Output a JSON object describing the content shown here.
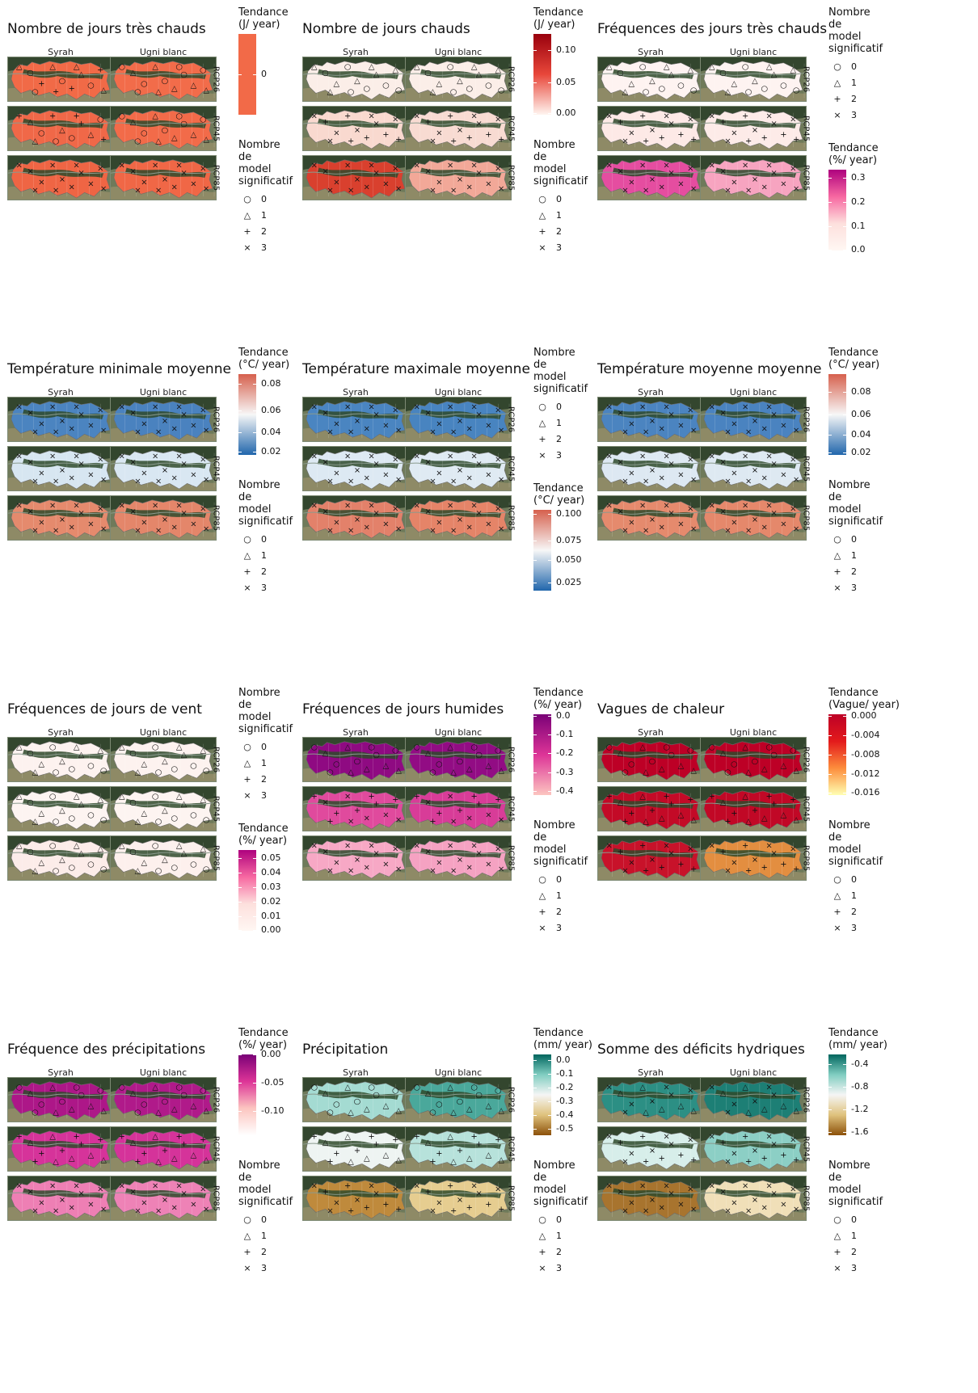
{
  "column_labels": [
    "Syrah",
    "Ugni blanc"
  ],
  "row_labels": [
    "RCP26",
    "RCP45",
    "RCP85"
  ],
  "shape_legend": {
    "title": "Nombre\nde\nmodel\nsignificatif",
    "items": [
      {
        "symbol": "○",
        "value": "0"
      },
      {
        "symbol": "△",
        "value": "1"
      },
      {
        "symbol": "+",
        "value": "2"
      },
      {
        "symbol": "×",
        "value": "3"
      }
    ]
  },
  "panels": [
    {
      "title": "Nombre de jours très chauds",
      "legend_order": "color-first",
      "color": {
        "title": "Tendance\n(J/ year)",
        "gradient": [
          "#f26a48",
          "#f26a48"
        ],
        "ticks": [
          {
            "label": "0",
            "pos": 0.5
          }
        ]
      },
      "fills": [
        [
          "#f16a47",
          "#f26c4a"
        ],
        [
          "#f06848",
          "#f26b49"
        ],
        [
          "#ef6544",
          "#f06746"
        ]
      ],
      "shapes": [
        [
          "△○+",
          "○△"
        ],
        [
          "+△○",
          "○△"
        ],
        [
          "××",
          "××"
        ]
      ]
    },
    {
      "title": "Nombre de jours chauds",
      "legend_order": "color-first",
      "color": {
        "title": "Tendance\n(J/ year)",
        "gradient": [
          "#99000d",
          "#e8473a",
          "#fff5f0"
        ],
        "ticks": [
          {
            "label": "0.10",
            "pos": 0.2
          },
          {
            "label": "0.05",
            "pos": 0.6
          },
          {
            "label": "0.00",
            "pos": 0.98
          }
        ]
      },
      "fills": [
        [
          "#fbeee8",
          "#fbeee8"
        ],
        [
          "#f9d9cf",
          "#f8dbd2"
        ],
        [
          "#d9402e",
          "#f2a898"
        ]
      ],
      "shapes": [
        [
          "△○",
          "△○"
        ],
        [
          "×+",
          "×+"
        ],
        [
          "××",
          "××"
        ]
      ]
    },
    {
      "title": "Fréquences des jours très chauds",
      "legend_order": "shape-first",
      "color": {
        "title": "Tendance\n(%/ year)",
        "gradient": [
          "#ae017e",
          "#f768a1",
          "#fde0dd",
          "#fff7f3"
        ],
        "ticks": [
          {
            "label": "0.3",
            "pos": 0.1
          },
          {
            "label": "0.2",
            "pos": 0.4
          },
          {
            "label": "0.1",
            "pos": 0.7
          },
          {
            "label": "0.0",
            "pos": 0.99
          }
        ]
      },
      "fills": [
        [
          "#fef3f1",
          "#fef3f1"
        ],
        [
          "#fde9e6",
          "#fdebe8"
        ],
        [
          "#e54da0",
          "#f7a4c0"
        ]
      ],
      "shapes": [
        [
          "△○",
          "△○"
        ],
        [
          "×+",
          "×+"
        ],
        [
          "××",
          "××"
        ]
      ]
    },
    {
      "title": "Température minimale moyenne",
      "legend_order": "color-first",
      "color": {
        "title": "Tendance\n(°C/ year)",
        "gradient": [
          "#d6604d",
          "#f7f7f7",
          "#2166ac"
        ],
        "ticks": [
          {
            "label": "0.08",
            "pos": 0.12
          },
          {
            "label": "0.06",
            "pos": 0.45
          },
          {
            "label": "0.04",
            "pos": 0.72
          },
          {
            "label": "0.02",
            "pos": 0.96
          }
        ]
      },
      "fills": [
        [
          "#4b84c0",
          "#4a82bf"
        ],
        [
          "#d7e6f1",
          "#d9e7f2"
        ],
        [
          "#e58a6d",
          "#e4866a"
        ]
      ],
      "shapes": [
        [
          "××",
          "××"
        ],
        [
          "××",
          "××"
        ],
        [
          "××",
          "××"
        ]
      ]
    },
    {
      "title": "Température maximale moyenne",
      "legend_order": "shape-first",
      "color": {
        "title": "Tendance\n(°C/ year)",
        "gradient": [
          "#d6604d",
          "#f7f7f7",
          "#2166ac"
        ],
        "ticks": [
          {
            "label": "0.100",
            "pos": 0.05
          },
          {
            "label": "0.075",
            "pos": 0.38
          },
          {
            "label": "0.050",
            "pos": 0.62
          },
          {
            "label": "0.025",
            "pos": 0.9
          }
        ]
      },
      "fills": [
        [
          "#4a85c1",
          "#4884c0"
        ],
        [
          "#dde9f3",
          "#dfeaf3"
        ],
        [
          "#e3816a",
          "#e58468"
        ]
      ],
      "shapes": [
        [
          "××",
          "××"
        ],
        [
          "××",
          "××"
        ],
        [
          "××",
          "××"
        ]
      ]
    },
    {
      "title": "Température moyenne moyenne",
      "legend_order": "color-first",
      "color": {
        "title": "Tendance\n(°C/ year)",
        "gradient": [
          "#d6604d",
          "#f7f7f7",
          "#2166ac"
        ],
        "ticks": [
          {
            "label": "0.08",
            "pos": 0.22
          },
          {
            "label": "0.06",
            "pos": 0.5
          },
          {
            "label": "0.04",
            "pos": 0.75
          },
          {
            "label": "0.02",
            "pos": 0.97
          }
        ]
      },
      "fills": [
        [
          "#4b84c0",
          "#4a83c0"
        ],
        [
          "#dde8f2",
          "#dee9f2"
        ],
        [
          "#e58a6d",
          "#e5886b"
        ]
      ],
      "shapes": [
        [
          "××",
          "××"
        ],
        [
          "××",
          "××"
        ],
        [
          "××",
          "××"
        ]
      ]
    },
    {
      "title": "Fréquences de jours de vent",
      "legend_order": "shape-first",
      "color": {
        "title": "Tendance\n(%/ year)",
        "gradient": [
          "#ae017e",
          "#f768a1",
          "#fde0dd",
          "#fff7f3"
        ],
        "ticks": [
          {
            "label": "0.05",
            "pos": 0.1
          },
          {
            "label": "0.04",
            "pos": 0.28
          },
          {
            "label": "0.03",
            "pos": 0.46
          },
          {
            "label": "0.02",
            "pos": 0.64
          },
          {
            "label": "0.01",
            "pos": 0.82
          },
          {
            "label": "0.00",
            "pos": 0.99
          }
        ]
      },
      "fills": [
        [
          "#fdf2ef",
          "#fdf2ef"
        ],
        [
          "#fdf4f1",
          "#fdf4f1"
        ],
        [
          "#fcece9",
          "#fdf0ed"
        ]
      ],
      "shapes": [
        [
          "△○",
          "△○"
        ],
        [
          "△○",
          "△○"
        ],
        [
          "△○",
          "△○"
        ]
      ]
    },
    {
      "title": "Fréquences de jours humides",
      "legend_order": "color-first",
      "color": {
        "title": "Tendance\n(%/ year)",
        "gradient": [
          "#7a0177",
          "#dd3497",
          "#fcc5c0"
        ],
        "ticks": [
          {
            "label": "0.0",
            "pos": 0.02
          },
          {
            "label": "-0.1",
            "pos": 0.25
          },
          {
            "label": "-0.2",
            "pos": 0.48
          },
          {
            "label": "-0.3",
            "pos": 0.72
          },
          {
            "label": "-0.4",
            "pos": 0.95
          }
        ]
      },
      "fills": [
        [
          "#8f0a82",
          "#920c84"
        ],
        [
          "#e04a9d",
          "#d83c98"
        ],
        [
          "#f7a8c5",
          "#f5a2c2"
        ]
      ],
      "shapes": [
        [
          "○△",
          "○△"
        ],
        [
          "+×",
          "+×"
        ],
        [
          "××",
          "××"
        ]
      ]
    },
    {
      "title": "Vagues de chaleur",
      "legend_order": "color-first",
      "color": {
        "title": "Tendance\n(Vague/ year)",
        "gradient": [
          "#bd0026",
          "#e31a1c",
          "#fd8d3c",
          "#ffffb2"
        ],
        "ticks": [
          {
            "label": "0.000",
            "pos": 0.02
          },
          {
            "label": "-0.004",
            "pos": 0.26
          },
          {
            "label": "-0.008",
            "pos": 0.5
          },
          {
            "label": "-0.012",
            "pos": 0.74
          },
          {
            "label": "-0.016",
            "pos": 0.97
          }
        ]
      },
      "fills": [
        [
          "#bd0026",
          "#bd0026"
        ],
        [
          "#c30a27",
          "#c10826"
        ],
        [
          "#c8122a",
          "#e38e40"
        ]
      ],
      "shapes": [
        [
          "○△",
          "○△"
        ],
        [
          "+△",
          "+△"
        ],
        [
          "×+",
          "×+"
        ]
      ]
    },
    {
      "title": "Fréquence des précipitations",
      "legend_order": "color-first",
      "color": {
        "title": "Tendance\n(%/ year)",
        "gradient": [
          "#7a0177",
          "#dd3497",
          "#fcc5c0",
          "#ffffff"
        ],
        "ticks": [
          {
            "label": "0.00",
            "pos": 0.0
          },
          {
            "label": "-0.05",
            "pos": 0.35
          },
          {
            "label": "-0.10",
            "pos": 0.7
          }
        ]
      },
      "fills": [
        [
          "#ad1788",
          "#b01a8a"
        ],
        [
          "#d6339a",
          "#d5339a"
        ],
        [
          "#ee7fb4",
          "#ee82b6"
        ]
      ],
      "shapes": [
        [
          "○△",
          "○△"
        ],
        [
          "+△",
          "+△"
        ],
        [
          "××",
          "××"
        ]
      ]
    },
    {
      "title": "Précipitation",
      "legend_order": "color-first",
      "color": {
        "title": "Tendance\n(mm/ year)",
        "gradient": [
          "#01665e",
          "#80cdc1",
          "#f5f5f5",
          "#dfc27d",
          "#8c510a"
        ],
        "ticks": [
          {
            "label": "0.0",
            "pos": 0.07
          },
          {
            "label": "-0.1",
            "pos": 0.24
          },
          {
            "label": "-0.2",
            "pos": 0.41
          },
          {
            "label": "-0.3",
            "pos": 0.58
          },
          {
            "label": "-0.4",
            "pos": 0.75
          },
          {
            "label": "-0.5",
            "pos": 0.92
          }
        ]
      },
      "fills": [
        [
          "#a4dbd2",
          "#4aa89b"
        ],
        [
          "#eef4f2",
          "#b7e2db"
        ],
        [
          "#bf8a3c",
          "#e6cd90"
        ]
      ],
      "shapes": [
        [
          "○△",
          "○△"
        ],
        [
          "+△",
          "+△"
        ],
        [
          "×+",
          "×+"
        ]
      ]
    },
    {
      "title": "Somme des déficits hydriques",
      "legend_order": "color-first",
      "color": {
        "title": "Tendance\n(mm/ year)",
        "gradient": [
          "#01665e",
          "#80cdc1",
          "#f5f5f5",
          "#dfc27d",
          "#8c510a"
        ],
        "ticks": [
          {
            "label": "-0.4",
            "pos": 0.12
          },
          {
            "label": "-0.8",
            "pos": 0.4
          },
          {
            "label": "-1.2",
            "pos": 0.68
          },
          {
            "label": "-1.6",
            "pos": 0.96
          }
        ]
      },
      "fills": [
        [
          "#2c8f84",
          "#1d7f75"
        ],
        [
          "#d7eeea",
          "#8ccfc5"
        ],
        [
          "#a8742e",
          "#f0dfb8"
        ]
      ],
      "shapes": [
        [
          "×△",
          "×△"
        ],
        [
          "×+",
          "×+"
        ],
        [
          "××",
          "××"
        ]
      ]
    }
  ]
}
